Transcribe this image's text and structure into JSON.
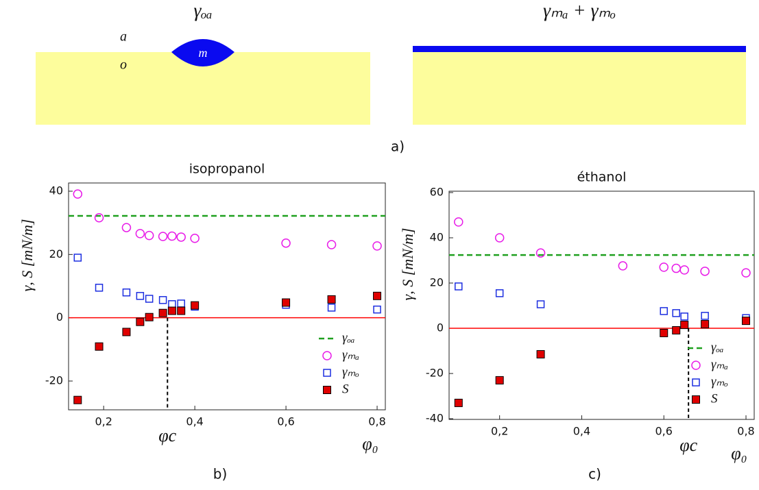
{
  "diagram": {
    "left_label": "γₒₐ",
    "air": "a",
    "oil": "o",
    "drop": "m",
    "right_label": "γₘₐ + γₘₒ",
    "panel_label": "a)"
  },
  "chart_data": [
    {
      "type": "scatter",
      "title": "isopropanol",
      "panel_label": "b)",
      "x_label": "φ₀",
      "y_label": "γ, S [mN/m]",
      "xlim": [
        0.123,
        0.818
      ],
      "ylim": [
        -29.1,
        42.6
      ],
      "xticks": [
        {
          "value": 0.2,
          "label": "0,2"
        },
        {
          "value": 0.4,
          "label": "0,4"
        },
        {
          "value": 0.6,
          "label": "0,6"
        },
        {
          "value": 0.8,
          "label": "0,8"
        }
      ],
      "yticks": [
        -20,
        0,
        20,
        40
      ],
      "legend": "lower right",
      "reference_lines": [
        {
          "name": "γₒₐ",
          "value": 32.2,
          "color": "#1fa01f"
        }
      ],
      "baseline": {
        "value": 0,
        "color": "#ff0000"
      },
      "critical": {
        "label": "φc",
        "value": 0.34
      },
      "series": [
        {
          "name": "γₘₐ",
          "marker": "circle",
          "color": "#e81ce8",
          "x": [
            0.143,
            0.19,
            0.25,
            0.28,
            0.3,
            0.33,
            0.35,
            0.37,
            0.4,
            0.6,
            0.7,
            0.8
          ],
          "values": [
            39.1,
            31.6,
            28.5,
            26.6,
            26,
            25.7,
            25.8,
            25.5,
            25.1,
            23.6,
            23.1,
            22.7
          ]
        },
        {
          "name": "γₘₒ",
          "marker": "square",
          "color": "#1c2ee0",
          "x": [
            0.143,
            0.19,
            0.25,
            0.28,
            0.3,
            0.33,
            0.35,
            0.37,
            0.4,
            0.6,
            0.7,
            0.8
          ],
          "values": [
            19,
            9.5,
            8,
            6.9,
            6,
            5.6,
            4.3,
            4.5,
            3.5,
            4.1,
            3.2,
            2.6
          ]
        },
        {
          "name": "S",
          "marker": "filled-square",
          "color": "#e00000",
          "x": [
            0.143,
            0.19,
            0.25,
            0.28,
            0.3,
            0.33,
            0.35,
            0.37,
            0.4,
            0.6,
            0.7,
            0.8
          ],
          "values": [
            -26,
            -9.1,
            -4.5,
            -1.3,
            0.2,
            1.5,
            2.2,
            2.2,
            3.9,
            4.8,
            5.8,
            6.9
          ]
        }
      ]
    },
    {
      "type": "scatter",
      "title": "éthanol",
      "panel_label": "c)",
      "x_label": "φ₀",
      "y_label": "γ, S [mN/m]",
      "xlim": [
        0.077,
        0.82
      ],
      "ylim": [
        -40.3,
        60.6
      ],
      "xticks": [
        {
          "value": 0.2,
          "label": "0,2"
        },
        {
          "value": 0.4,
          "label": "0,4"
        },
        {
          "value": 0.6,
          "label": "0,6"
        },
        {
          "value": 0.8,
          "label": "0,8"
        }
      ],
      "yticks": [
        -40,
        -20,
        0,
        20,
        40,
        60
      ],
      "legend": "lower right",
      "reference_lines": [
        {
          "name": "γₒₐ",
          "value": 32.4,
          "color": "#1fa01f"
        }
      ],
      "baseline": {
        "value": 0,
        "color": "#ff0000"
      },
      "critical": {
        "label": "φc",
        "value": 0.66
      },
      "series": [
        {
          "name": "γₘₐ",
          "marker": "circle",
          "color": "#e81ce8",
          "x": [
            0.1,
            0.2,
            0.3,
            0.5,
            0.6,
            0.63,
            0.65,
            0.7,
            0.8
          ],
          "values": [
            47,
            40,
            33.3,
            27.6,
            27,
            26.5,
            25.8,
            25.2,
            24.5
          ]
        },
        {
          "name": "γₘₒ",
          "marker": "square",
          "color": "#1c2ee0",
          "x": [
            0.1,
            0.2,
            0.3,
            0.6,
            0.63,
            0.65,
            0.7,
            0.8
          ],
          "values": [
            18.5,
            15.5,
            10.6,
            7.6,
            6.7,
            5.2,
            5.5,
            4.5
          ]
        },
        {
          "name": "S",
          "marker": "filled-square",
          "color": "#e00000",
          "x": [
            0.1,
            0.2,
            0.3,
            0.6,
            0.63,
            0.65,
            0.7,
            0.8
          ],
          "values": [
            -33,
            -23,
            -11.5,
            -2.1,
            -0.9,
            1.5,
            1.8,
            3.3
          ]
        }
      ]
    }
  ]
}
